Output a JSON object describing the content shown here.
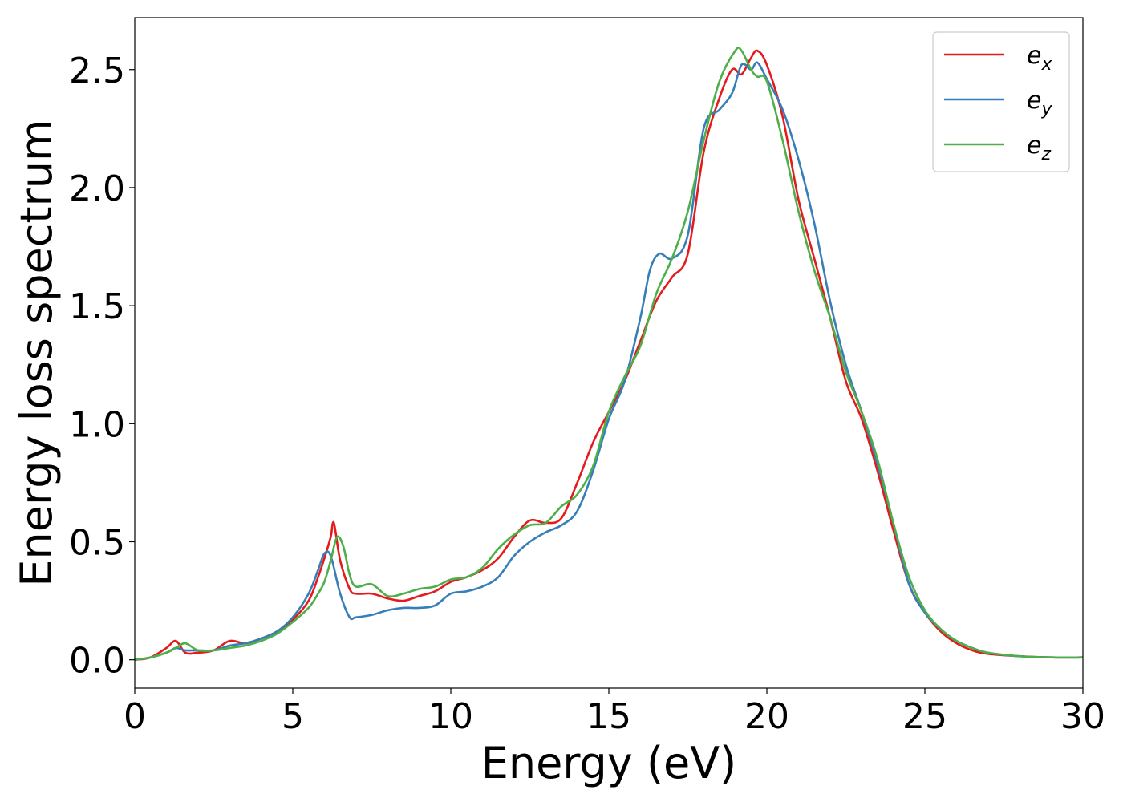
{
  "chart_data": {
    "type": "line",
    "xlabel": "Energy (eV)",
    "ylabel": "Energy loss spectrum",
    "xlim": [
      0,
      30
    ],
    "ylim": [
      -0.12,
      2.72
    ],
    "xticks": [
      0,
      5,
      10,
      15,
      20,
      25,
      30
    ],
    "xtick_labels": [
      "0",
      "5",
      "10",
      "15",
      "20",
      "25",
      "30"
    ],
    "yticks": [
      0.0,
      0.5,
      1.0,
      1.5,
      2.0,
      2.5
    ],
    "ytick_labels": [
      "0.0",
      "0.5",
      "1.0",
      "1.5",
      "2.0",
      "2.5"
    ],
    "grid": false,
    "legend_position": "top-right",
    "series": [
      {
        "name": "e",
        "subscript": "x",
        "color": "#e41a1c",
        "x": [
          0,
          0.5,
          1.0,
          1.3,
          1.6,
          2.0,
          2.5,
          3.0,
          3.5,
          4.0,
          4.5,
          5.0,
          5.5,
          5.8,
          6.0,
          6.2,
          6.3,
          6.5,
          6.8,
          7.0,
          7.5,
          8.0,
          8.5,
          9.0,
          9.5,
          10.0,
          10.5,
          11.0,
          11.5,
          12.0,
          12.5,
          13.0,
          13.5,
          14.0,
          14.5,
          15.0,
          15.5,
          16.0,
          16.5,
          17.0,
          17.5,
          18.0,
          18.5,
          18.9,
          19.2,
          19.5,
          19.7,
          20.0,
          20.5,
          21.0,
          21.5,
          22.0,
          22.5,
          23.0,
          23.5,
          24.0,
          24.5,
          25.0,
          25.5,
          26.0,
          26.5,
          27.0,
          28.0,
          29.0,
          30.0
        ],
        "y": [
          0.0,
          0.01,
          0.05,
          0.08,
          0.03,
          0.03,
          0.04,
          0.08,
          0.07,
          0.09,
          0.12,
          0.17,
          0.25,
          0.35,
          0.43,
          0.52,
          0.58,
          0.42,
          0.3,
          0.28,
          0.28,
          0.26,
          0.25,
          0.27,
          0.29,
          0.33,
          0.35,
          0.38,
          0.43,
          0.52,
          0.59,
          0.58,
          0.6,
          0.75,
          0.92,
          1.05,
          1.18,
          1.35,
          1.52,
          1.62,
          1.72,
          2.15,
          2.38,
          2.5,
          2.48,
          2.55,
          2.58,
          2.52,
          2.3,
          1.95,
          1.7,
          1.45,
          1.18,
          1.02,
          0.8,
          0.55,
          0.32,
          0.2,
          0.12,
          0.07,
          0.04,
          0.025,
          0.015,
          0.01,
          0.01
        ]
      },
      {
        "name": "e",
        "subscript": "y",
        "color": "#377eb8",
        "x": [
          0,
          0.5,
          1.0,
          1.3,
          1.6,
          2.0,
          2.5,
          3.0,
          3.5,
          4.0,
          4.5,
          5.0,
          5.5,
          5.8,
          6.0,
          6.2,
          6.5,
          6.8,
          7.0,
          7.5,
          8.0,
          8.5,
          9.0,
          9.5,
          10.0,
          10.5,
          11.0,
          11.5,
          12.0,
          12.5,
          13.0,
          13.5,
          14.0,
          14.5,
          15.0,
          15.5,
          16.0,
          16.3,
          16.6,
          17.0,
          17.5,
          18.0,
          18.5,
          18.9,
          19.2,
          19.5,
          19.7,
          20.0,
          20.5,
          21.0,
          21.5,
          22.0,
          22.5,
          23.0,
          23.5,
          24.0,
          24.5,
          25.0,
          25.5,
          26.0,
          26.5,
          27.0,
          28.0,
          29.0,
          30.0
        ],
        "y": [
          0.0,
          0.01,
          0.03,
          0.05,
          0.04,
          0.04,
          0.04,
          0.06,
          0.07,
          0.09,
          0.12,
          0.18,
          0.28,
          0.38,
          0.45,
          0.44,
          0.28,
          0.18,
          0.18,
          0.19,
          0.21,
          0.22,
          0.22,
          0.23,
          0.28,
          0.29,
          0.31,
          0.35,
          0.44,
          0.5,
          0.54,
          0.57,
          0.63,
          0.8,
          1.02,
          1.18,
          1.45,
          1.65,
          1.72,
          1.7,
          1.8,
          2.25,
          2.33,
          2.4,
          2.52,
          2.5,
          2.53,
          2.46,
          2.33,
          2.12,
          1.85,
          1.52,
          1.25,
          1.05,
          0.83,
          0.58,
          0.32,
          0.2,
          0.13,
          0.08,
          0.05,
          0.03,
          0.015,
          0.01,
          0.01
        ]
      },
      {
        "name": "e",
        "subscript": "z",
        "color": "#4daf4a",
        "x": [
          0,
          0.5,
          1.0,
          1.3,
          1.6,
          2.0,
          2.5,
          3.0,
          3.5,
          4.0,
          4.5,
          5.0,
          5.5,
          5.8,
          6.0,
          6.2,
          6.4,
          6.6,
          6.8,
          7.0,
          7.5,
          8.0,
          8.5,
          9.0,
          9.5,
          10.0,
          10.5,
          11.0,
          11.5,
          12.0,
          12.5,
          13.0,
          13.5,
          14.0,
          14.5,
          15.0,
          15.5,
          16.0,
          16.5,
          17.0,
          17.5,
          18.0,
          18.5,
          19.0,
          19.2,
          19.5,
          19.7,
          20.0,
          20.5,
          21.0,
          21.5,
          22.0,
          22.5,
          23.0,
          23.5,
          24.0,
          24.5,
          25.0,
          25.5,
          26.0,
          26.5,
          27.0,
          28.0,
          29.0,
          30.0
        ],
        "y": [
          0.0,
          0.01,
          0.03,
          0.05,
          0.07,
          0.04,
          0.04,
          0.05,
          0.06,
          0.08,
          0.11,
          0.16,
          0.22,
          0.28,
          0.33,
          0.42,
          0.52,
          0.48,
          0.36,
          0.31,
          0.32,
          0.27,
          0.28,
          0.3,
          0.31,
          0.34,
          0.35,
          0.39,
          0.47,
          0.53,
          0.57,
          0.58,
          0.65,
          0.7,
          0.82,
          1.05,
          1.2,
          1.33,
          1.55,
          1.7,
          1.9,
          2.2,
          2.45,
          2.58,
          2.58,
          2.5,
          2.47,
          2.45,
          2.2,
          1.9,
          1.65,
          1.45,
          1.22,
          1.05,
          0.85,
          0.58,
          0.35,
          0.21,
          0.13,
          0.08,
          0.05,
          0.03,
          0.015,
          0.01,
          0.01
        ]
      }
    ]
  }
}
